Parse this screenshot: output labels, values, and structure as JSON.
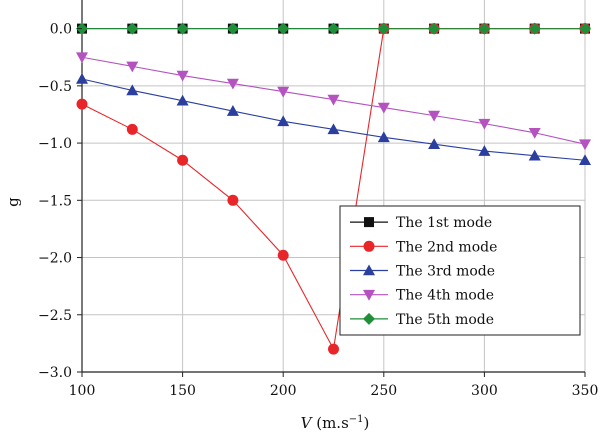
{
  "chart_data": {
    "type": "line",
    "xlabel_var": "V",
    "xlabel_unit_open": " (m.s",
    "xlabel_unit_exp": "−1",
    "xlabel_unit_close": ")",
    "ylabel": "g",
    "xlim": [
      100,
      350
    ],
    "ylim": [
      -3.0,
      0.25
    ],
    "x_ticks": [
      100,
      150,
      200,
      250,
      300,
      350
    ],
    "x_tick_labels": [
      "100",
      "150",
      "200",
      "250",
      "300",
      "350"
    ],
    "y_ticks": [
      0.0,
      -0.5,
      -1.0,
      -1.5,
      -2.0,
      -2.5,
      -3.0
    ],
    "y_tick_labels": [
      "0.0",
      "−0.5",
      "−1.0",
      "−1.5",
      "−2.0",
      "−2.5",
      "−3.0"
    ],
    "grid": true,
    "legend_position": "bottom-right",
    "series": [
      {
        "name": "The 1st mode",
        "color": "#111111",
        "marker": "square",
        "x": [
          100,
          125,
          150,
          175,
          200,
          225,
          250,
          275,
          300,
          325,
          350
        ],
        "y": [
          0,
          0,
          0,
          0,
          0,
          0,
          0,
          0,
          0,
          0,
          0
        ]
      },
      {
        "name": "The 2nd mode",
        "color": "#e8262a",
        "marker": "circle",
        "x": [
          100,
          125,
          150,
          175,
          200,
          225,
          250,
          275,
          300,
          325,
          350
        ],
        "y": [
          -0.66,
          -0.88,
          -1.15,
          -1.5,
          -1.98,
          -2.8,
          0,
          0,
          0,
          0,
          0
        ]
      },
      {
        "name": "The 3rd mode",
        "color": "#2b3f9e",
        "marker": "triangle-up",
        "x": [
          100,
          125,
          150,
          175,
          200,
          225,
          250,
          275,
          300,
          325,
          350
        ],
        "y": [
          -0.44,
          -0.54,
          -0.63,
          -0.72,
          -0.81,
          -0.88,
          -0.95,
          -1.01,
          -1.07,
          -1.11,
          -1.15
        ]
      },
      {
        "name": "The 4th mode",
        "color": "#b452c0",
        "marker": "triangle-down",
        "x": [
          100,
          125,
          150,
          175,
          200,
          225,
          250,
          275,
          300,
          325,
          350
        ],
        "y": [
          -0.25,
          -0.33,
          -0.41,
          -0.48,
          -0.55,
          -0.62,
          -0.69,
          -0.76,
          -0.83,
          -0.91,
          -1.01
        ]
      },
      {
        "name": "The 5th mode",
        "color": "#1f8f3a",
        "marker": "diamond",
        "x": [
          100,
          125,
          150,
          175,
          200,
          225,
          250,
          275,
          300,
          325,
          350
        ],
        "y": [
          0,
          0,
          0,
          0,
          0,
          0,
          0,
          0,
          0,
          0,
          0
        ]
      }
    ]
  }
}
